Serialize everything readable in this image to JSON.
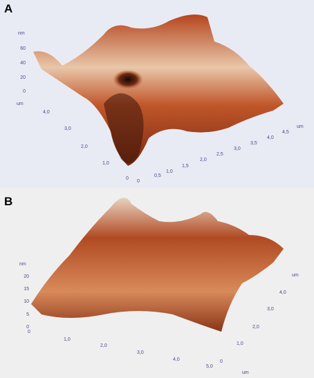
{
  "panels": [
    {
      "label": "A",
      "z_unit": "nm",
      "z_ticks": [
        "60",
        "40",
        "20",
        "0"
      ],
      "left_unit": "um",
      "left_ticks": [
        "4,0",
        "3,0",
        "2,0",
        "1,0",
        "0"
      ],
      "right_ticks": [
        "0",
        "0,5",
        "1,0",
        "1,5",
        "2,0",
        "2,5",
        "3,0",
        "3,5",
        "4,0",
        "4,5"
      ],
      "right_unit": "um"
    },
    {
      "label": "B",
      "z_unit": "nm",
      "z_ticks": [
        "20",
        "15",
        "10",
        "5",
        "0"
      ],
      "x_ticks": [
        "0",
        "1,0",
        "2,0",
        "3,0",
        "4,0",
        "5,0"
      ],
      "x_unit": "um",
      "y_ticks": [
        "0",
        "1,0",
        "2,0",
        "3,0",
        "4,0"
      ],
      "y_unit": "um"
    }
  ]
}
